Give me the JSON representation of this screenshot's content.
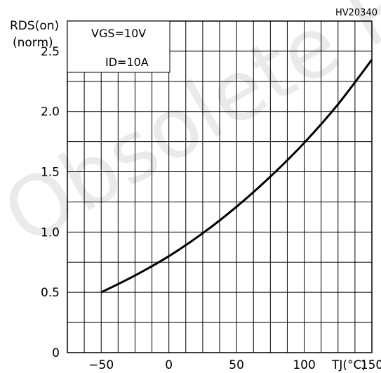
{
  "chart_data": {
    "type": "line",
    "figure_code": "HV20340",
    "xlabel": "TJ(°C)",
    "ylabel_line1": "RDS(on)",
    "ylabel_line2": "(norm)",
    "x_ticks": [
      "−50",
      "0",
      "50",
      "100",
      "150"
    ],
    "y_ticks": [
      "0",
      "0.5",
      "1.0",
      "1.5",
      "2.0",
      "2.5"
    ],
    "xlim": [
      -75,
      150
    ],
    "ylim": [
      0,
      2.75
    ],
    "grid": true,
    "annotation": {
      "line1": "VGS=10V",
      "line2": "ID=10A"
    },
    "watermark": "Obsolete Product",
    "series": [
      {
        "x": [
          -50,
          -25,
          0,
          25,
          50,
          75,
          100,
          125,
          150
        ],
        "y": [
          0.5,
          0.64,
          0.8,
          0.99,
          1.21,
          1.46,
          1.74,
          2.06,
          2.43
        ]
      }
    ]
  }
}
